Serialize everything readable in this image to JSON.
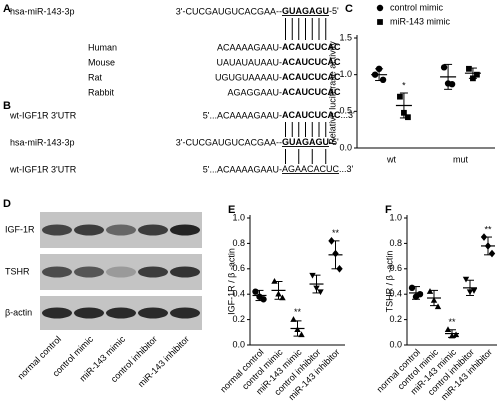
{
  "panel_a": {
    "letter": "A",
    "mirna": {
      "name": "hsa-miR-143-3p",
      "prefix": "3'-CUCGAUGUCACGAA--",
      "seed": "GUAGAGU",
      "suffix": "-5'"
    },
    "targets": [
      {
        "species": "Human",
        "prefix": "ACAAAAGAAU-",
        "site": "ACAUCUCAC"
      },
      {
        "species": "Mouse",
        "prefix": "UAUAUAUAAU-",
        "site": "ACAUCUCAC"
      },
      {
        "species": "Rat",
        "prefix": "UGUGUAAAAU-",
        "site": "ACAUCUCAC"
      },
      {
        "species": "Rabbit",
        "prefix": "AGAGGAAU-",
        "site": "ACAUCUCAC"
      }
    ]
  },
  "panel_b": {
    "letter": "B",
    "wt": {
      "name": "wt-IGF1R 3'UTR",
      "prefix": "5'...ACAAAAGAAU-",
      "site": "ACAUCUCAC",
      "suffix": "...3'"
    },
    "mirna": {
      "name": "hsa-miR-143-3p",
      "prefix": "3'-CUCGAUGUCACGAA--",
      "seed": "GUAGAGU",
      "suffix": "-5'"
    },
    "mut": {
      "name": "wt-IGF1R 3'UTR",
      "prefix": "5'...ACAAAAGAAU-",
      "site": "AGAACACUC",
      "suffix": "...3'"
    }
  },
  "panel_d": {
    "letter": "D",
    "rows": [
      "IGF-1R",
      "TSHR",
      "β-actin"
    ],
    "lanes": [
      "normal control",
      "control mimic",
      "miR-143 mimic",
      "control inhibitor",
      "miR-143 inhibitor"
    ]
  },
  "chart_data": [
    {
      "type": "dot",
      "panel": "C",
      "ylabel": "Relative luciferase activity",
      "categories": [
        "wt",
        "mut"
      ],
      "legend": "top",
      "series": [
        {
          "name": "control mimic",
          "marker": "circle",
          "color": "#000000",
          "values": [
            [
              1.0,
              1.08,
              0.93
            ],
            [
              1.1,
              0.88,
              0.87
            ]
          ],
          "means": [
            1.0,
            0.97
          ],
          "errors": [
            0.08,
            0.17
          ],
          "labels": [
            null,
            null
          ]
        },
        {
          "name": "miR-143 mimic",
          "marker": "square",
          "color": "#000000",
          "values": [
            [
              0.7,
              0.48,
              0.42
            ],
            [
              1.08,
              0.95,
              1.0
            ]
          ],
          "means": [
            0.58,
            1.02
          ],
          "errors": [
            0.17,
            0.07
          ],
          "labels": [
            "*",
            null
          ]
        }
      ],
      "ylim": [
        0,
        1.5
      ],
      "yticks": [
        {
          "value": 0,
          "label": "0.0"
        },
        0.5,
        {
          "value": 1,
          "label": "1.0"
        },
        1.5
      ]
    },
    {
      "type": "dot",
      "panel": "E",
      "ylabel": "IGF-1R / β -actin",
      "categories": [
        "normal control",
        "control mimic",
        "miR-143 mimic",
        "control inhibitor",
        "miR-143 inhibitor"
      ],
      "series": [
        {
          "markers": [
            "circle",
            "triangle",
            "triangle",
            "triangle-down",
            "diamond"
          ],
          "color": "#000000",
          "values": [
            [
              0.42,
              0.38,
              0.36
            ],
            [
              0.5,
              0.4,
              0.37
            ],
            [
              0.2,
              0.12,
              0.08
            ],
            [
              0.55,
              0.45,
              0.42
            ],
            [
              0.82,
              0.72,
              0.6
            ]
          ],
          "means": [
            0.39,
            0.43,
            0.13,
            0.48,
            0.71
          ],
          "errors": [
            0.04,
            0.07,
            0.06,
            0.07,
            0.11
          ],
          "labels": [
            null,
            null,
            "**",
            null,
            "**"
          ]
        }
      ],
      "ylim": [
        0,
        1
      ],
      "yticks": [
        {
          "value": 0,
          "label": "0.0"
        },
        0.2,
        0.4,
        0.6,
        0.8,
        {
          "value": 1,
          "label": "1.0"
        }
      ]
    },
    {
      "type": "dot",
      "panel": "F",
      "ylabel": "TSHR / β -actin",
      "categories": [
        "normal control",
        "control mimic",
        "miR-143 mimic",
        "control inhibitor",
        "miR-143 inhibitor"
      ],
      "series": [
        {
          "markers": [
            "circle",
            "triangle",
            "triangle",
            "triangle-down",
            "diamond"
          ],
          "color": "#000000",
          "values": [
            [
              0.45,
              0.38,
              0.4
            ],
            [
              0.42,
              0.35,
              0.3
            ],
            [
              0.12,
              0.07,
              0.08
            ],
            [
              0.52,
              0.42,
              0.43
            ],
            [
              0.85,
              0.78,
              0.72
            ]
          ],
          "means": [
            0.41,
            0.37,
            0.09,
            0.45,
            0.78
          ],
          "errors": [
            0.05,
            0.06,
            0.03,
            0.06,
            0.07
          ],
          "labels": [
            null,
            null,
            "**",
            null,
            "**"
          ]
        }
      ],
      "ylim": [
        0,
        1
      ],
      "yticks": [
        {
          "value": 0,
          "label": "0.0"
        },
        0.2,
        0.4,
        0.6,
        0.8,
        {
          "value": 1,
          "label": "1.0"
        }
      ]
    }
  ]
}
